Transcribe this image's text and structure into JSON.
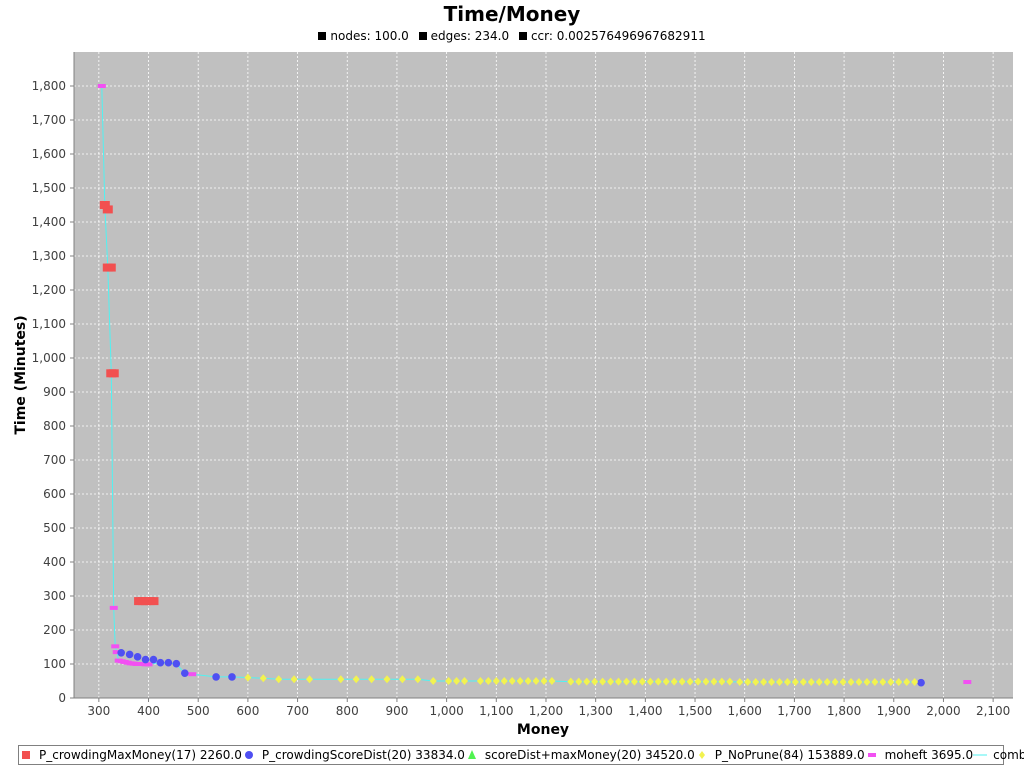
{
  "chart_data": {
    "type": "scatter",
    "title": "Time/Money",
    "subtitle": [
      {
        "label": "nodes: 100.0"
      },
      {
        "label": "edges: 234.0"
      },
      {
        "label": "ccr: 0.002576496967682911"
      }
    ],
    "xlabel": "Money",
    "ylabel": "Time (Minutes)",
    "xlim": [
      250,
      2140
    ],
    "ylim": [
      0,
      1900
    ],
    "xticks": [
      300,
      400,
      500,
      600,
      700,
      800,
      900,
      1000,
      1100,
      1200,
      1300,
      1400,
      1500,
      1600,
      1700,
      1800,
      1900,
      2000,
      2100
    ],
    "yticks": [
      0,
      100,
      200,
      300,
      400,
      500,
      600,
      700,
      800,
      900,
      1000,
      1100,
      1200,
      1300,
      1400,
      1500,
      1600,
      1700,
      1800
    ],
    "grid": true,
    "legend_position": "bottom",
    "background_color": "#c0c0c0",
    "series": [
      {
        "name": "P_crowdingMaxMoney(17) 2260.0",
        "marker": "square",
        "color": "#f25050",
        "points": [
          [
            312,
            1450
          ],
          [
            318,
            1437
          ],
          [
            318,
            1266
          ],
          [
            324,
            1266
          ],
          [
            325,
            955
          ],
          [
            330,
            955
          ],
          [
            381,
            285
          ],
          [
            389,
            285
          ],
          [
            395,
            285
          ],
          [
            402,
            285
          ],
          [
            410,
            285
          ]
        ]
      },
      {
        "name": "P_crowdingScoreDist(20) 33834.0",
        "marker": "circle",
        "color": "#4f4ff2",
        "points": [
          [
            345,
            133
          ],
          [
            362,
            128
          ],
          [
            378,
            121
          ],
          [
            394,
            113
          ],
          [
            410,
            113
          ],
          [
            424,
            104
          ],
          [
            440,
            104
          ],
          [
            456,
            101
          ],
          [
            473,
            73
          ],
          [
            536,
            62
          ],
          [
            568,
            62
          ],
          [
            1955,
            45
          ]
        ]
      },
      {
        "name": "scoreDist+maxMoney(20) 34520.0",
        "marker": "triangle",
        "color": "#50f250",
        "points": []
      },
      {
        "name": "P_NoPrune(84) 153889.0",
        "marker": "diamond",
        "color": "#f2f250",
        "points": [
          [
            600,
            60
          ],
          [
            631,
            58
          ],
          [
            662,
            55
          ],
          [
            693,
            55
          ],
          [
            724,
            55
          ],
          [
            787,
            55
          ],
          [
            818,
            55
          ],
          [
            849,
            55
          ],
          [
            880,
            55
          ],
          [
            911,
            55
          ],
          [
            942,
            55
          ],
          [
            973,
            50
          ],
          [
            1004,
            50
          ],
          [
            1020,
            50
          ],
          [
            1036,
            50
          ],
          [
            1068,
            50
          ],
          [
            1084,
            50
          ],
          [
            1100,
            50
          ],
          [
            1116,
            50
          ],
          [
            1132,
            50
          ],
          [
            1148,
            50
          ],
          [
            1164,
            50
          ],
          [
            1180,
            50
          ],
          [
            1196,
            50
          ],
          [
            1212,
            50
          ],
          [
            1250,
            48
          ],
          [
            1266,
            48
          ],
          [
            1282,
            48
          ],
          [
            1298,
            48
          ],
          [
            1314,
            48
          ],
          [
            1330,
            48
          ],
          [
            1346,
            48
          ],
          [
            1362,
            48
          ],
          [
            1378,
            48
          ],
          [
            1394,
            48
          ],
          [
            1410,
            48
          ],
          [
            1426,
            48
          ],
          [
            1442,
            48
          ],
          [
            1458,
            48
          ],
          [
            1474,
            48
          ],
          [
            1490,
            48
          ],
          [
            1506,
            48
          ],
          [
            1522,
            48
          ],
          [
            1538,
            48
          ],
          [
            1554,
            48
          ],
          [
            1570,
            48
          ],
          [
            1590,
            47
          ],
          [
            1606,
            47
          ],
          [
            1622,
            47
          ],
          [
            1638,
            47
          ],
          [
            1654,
            47
          ],
          [
            1670,
            47
          ],
          [
            1686,
            47
          ],
          [
            1702,
            47
          ],
          [
            1718,
            47
          ],
          [
            1734,
            47
          ],
          [
            1750,
            47
          ],
          [
            1766,
            47
          ],
          [
            1782,
            47
          ],
          [
            1798,
            47
          ],
          [
            1814,
            47
          ],
          [
            1830,
            47
          ],
          [
            1846,
            47
          ],
          [
            1862,
            47
          ],
          [
            1878,
            47
          ],
          [
            1894,
            47
          ],
          [
            1910,
            47
          ],
          [
            1926,
            47
          ],
          [
            1942,
            47
          ]
        ]
      },
      {
        "name": "moheft 3695.0",
        "marker": "bar",
        "color": "#f250f2",
        "points": [
          [
            306,
            1800
          ],
          [
            330,
            265
          ],
          [
            333,
            152
          ],
          [
            336,
            135
          ],
          [
            340,
            110
          ],
          [
            346,
            108
          ],
          [
            352,
            106
          ],
          [
            358,
            104
          ],
          [
            364,
            102
          ],
          [
            370,
            101
          ],
          [
            376,
            100
          ],
          [
            382,
            100
          ],
          [
            388,
            100
          ],
          [
            394,
            99
          ],
          [
            400,
            99
          ],
          [
            488,
            70
          ],
          [
            2048,
            47
          ]
        ]
      },
      {
        "name": "combined",
        "marker": "line",
        "color": "#50f2f2",
        "points": [
          [
            306,
            1800
          ],
          [
            312,
            1450
          ],
          [
            318,
            1266
          ],
          [
            325,
            955
          ],
          [
            330,
            265
          ],
          [
            333,
            152
          ],
          [
            336,
            135
          ],
          [
            340,
            110
          ],
          [
            346,
            108
          ],
          [
            362,
            103
          ],
          [
            400,
            99
          ],
          [
            424,
            104
          ],
          [
            456,
            101
          ],
          [
            473,
            73
          ],
          [
            488,
            70
          ],
          [
            536,
            62
          ],
          [
            568,
            62
          ],
          [
            600,
            60
          ],
          [
            631,
            58
          ],
          [
            662,
            55
          ],
          [
            787,
            55
          ],
          [
            942,
            55
          ],
          [
            973,
            50
          ],
          [
            1212,
            50
          ],
          [
            1250,
            48
          ],
          [
            1570,
            48
          ],
          [
            1590,
            47
          ],
          [
            1942,
            47
          ],
          [
            1955,
            45
          ]
        ]
      }
    ]
  }
}
